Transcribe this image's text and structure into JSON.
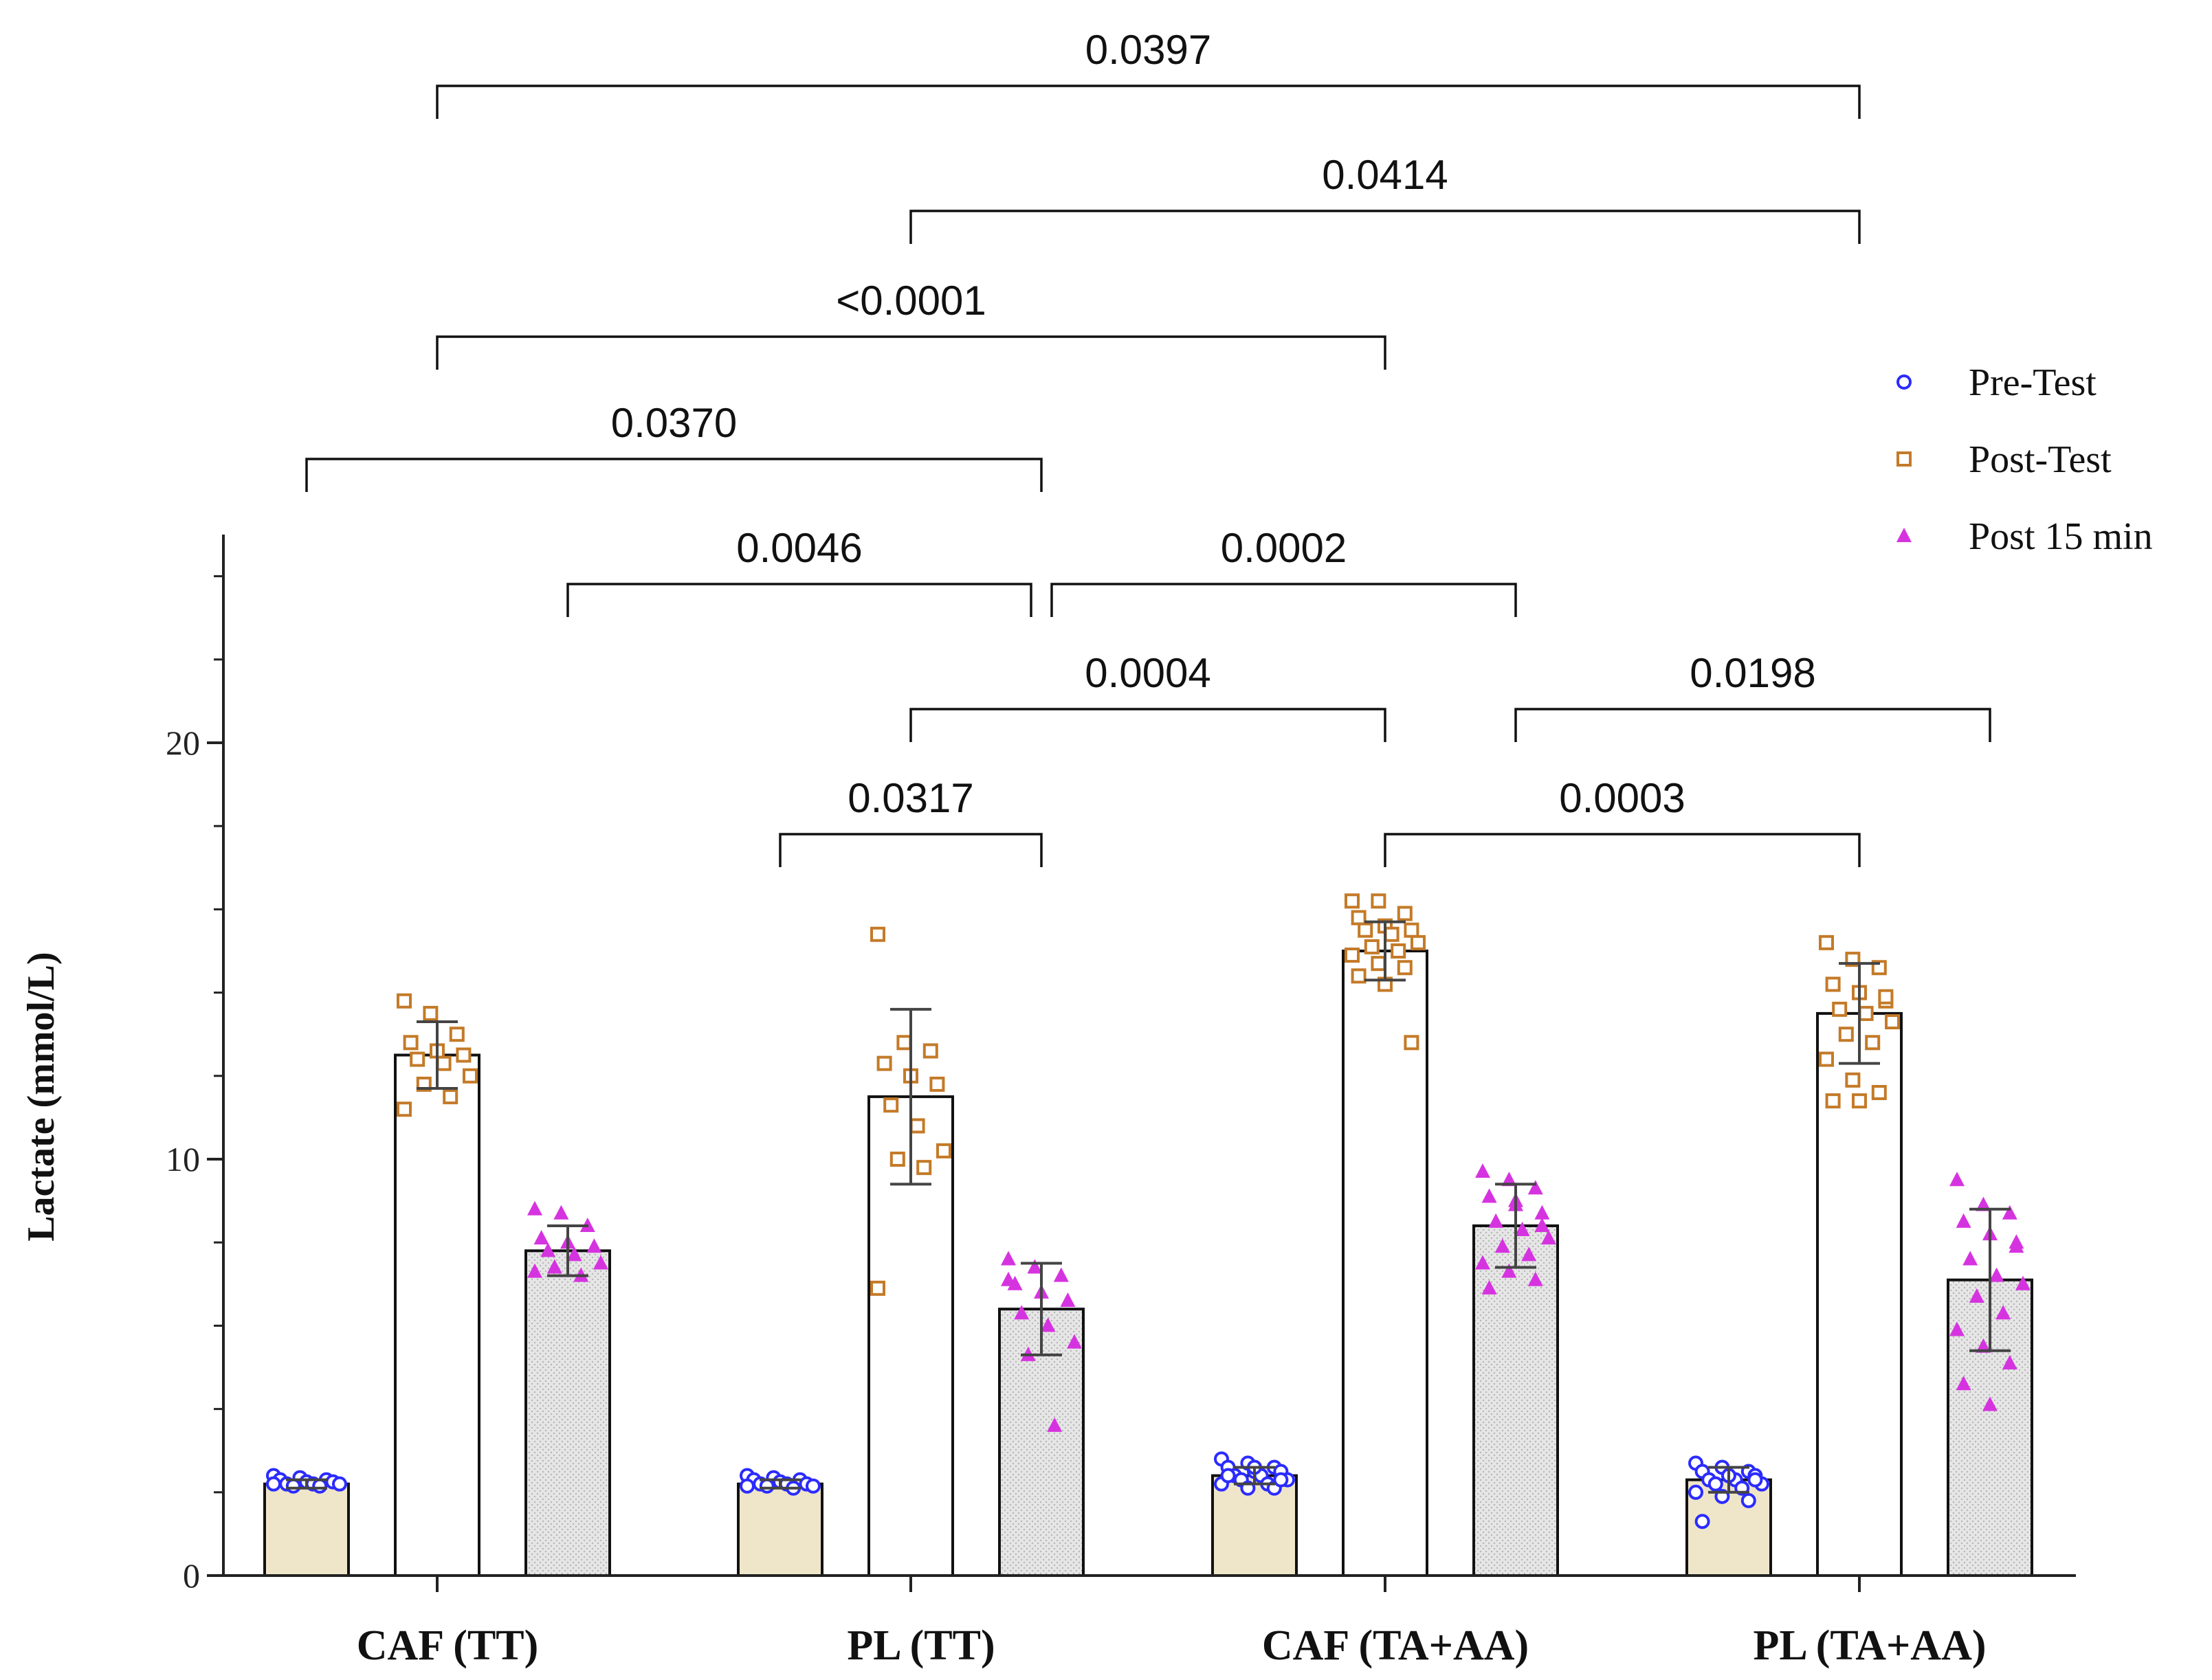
{
  "chart_data": {
    "type": "bar",
    "title": "",
    "xlabel": "",
    "ylabel": "Lactate (mmol/L)",
    "ylim": [
      0,
      25
    ],
    "yticks": [
      0,
      10,
      20
    ],
    "grid": false,
    "legend_position": "top-right",
    "categories": [
      "CAF (TT)",
      "PL (TT)",
      "CAF (TA+AA)",
      "PL (TA+AA)"
    ],
    "series": [
      {
        "name": "Pre-Test",
        "marker": "circle",
        "marker_color": "#2b2bff",
        "bar_fill": "#efe5c9",
        "values": [
          2.2,
          2.2,
          2.4,
          2.3
        ],
        "sd": [
          0.1,
          0.1,
          0.2,
          0.3
        ],
        "points": [
          [
            2.4,
            2.35,
            2.3,
            2.3,
            2.25,
            2.25,
            2.2,
            2.2,
            2.2,
            2.15,
            2.15,
            2.2
          ],
          [
            2.4,
            2.35,
            2.3,
            2.3,
            2.25,
            2.2,
            2.2,
            2.2,
            2.15,
            2.15,
            2.1,
            2.15
          ],
          [
            2.8,
            2.7,
            2.6,
            2.6,
            2.5,
            2.5,
            2.4,
            2.4,
            2.3,
            2.3,
            2.2,
            2.2,
            2.1,
            2.1,
            2.4,
            2.6,
            2.3
          ],
          [
            2.7,
            2.6,
            2.5,
            2.5,
            2.4,
            2.4,
            2.3,
            2.3,
            2.2,
            2.2,
            2.1,
            2.0,
            1.9,
            1.8,
            1.3,
            2.4,
            2.3
          ]
        ]
      },
      {
        "name": "Post-Test",
        "marker": "square",
        "marker_color": "#c47a28",
        "bar_fill": "#ffffff",
        "values": [
          12.5,
          11.5,
          15.0,
          13.5
        ],
        "sd": [
          0.8,
          2.1,
          0.7,
          1.2
        ],
        "points": [
          [
            13.8,
            13.5,
            13.0,
            12.8,
            12.6,
            12.5,
            12.4,
            12.3,
            12.0,
            11.8,
            11.5,
            11.2
          ],
          [
            15.4,
            12.8,
            12.6,
            12.3,
            12.0,
            11.8,
            11.3,
            10.8,
            10.2,
            10.0,
            9.8,
            6.9
          ],
          [
            16.2,
            16.2,
            15.9,
            15.8,
            15.6,
            15.5,
            15.5,
            15.4,
            15.2,
            15.1,
            15.0,
            14.9,
            14.7,
            14.6,
            14.4,
            14.2,
            12.8
          ],
          [
            15.2,
            14.8,
            14.6,
            14.2,
            14.0,
            13.8,
            13.6,
            13.5,
            13.3,
            13.0,
            12.8,
            12.4,
            11.9,
            11.6,
            11.4,
            11.4,
            13.9
          ]
        ]
      },
      {
        "name": "Post 15 min",
        "marker": "triangle",
        "marker_color": "#d633e0",
        "bar_fill": "#e4e4e4",
        "values": [
          7.8,
          6.4,
          8.4,
          7.1
        ],
        "sd": [
          0.6,
          1.1,
          1.0,
          1.7
        ],
        "points": [
          [
            8.8,
            8.7,
            8.4,
            8.1,
            8.0,
            7.9,
            7.8,
            7.7,
            7.5,
            7.4,
            7.2,
            7.3
          ],
          [
            7.6,
            7.4,
            7.2,
            7.0,
            6.8,
            6.6,
            6.3,
            6.0,
            5.6,
            5.3,
            3.6,
            7.1
          ],
          [
            9.7,
            9.5,
            9.3,
            9.1,
            8.9,
            8.7,
            8.5,
            8.3,
            8.1,
            7.9,
            7.7,
            7.5,
            7.3,
            7.1,
            6.9,
            9.0,
            8.4
          ],
          [
            9.5,
            8.9,
            8.7,
            8.5,
            8.2,
            7.9,
            7.6,
            7.2,
            7.0,
            6.7,
            6.3,
            5.9,
            5.5,
            5.1,
            4.6,
            4.1,
            8.0
          ]
        ]
      }
    ],
    "comparisons": [
      {
        "label": "0.0397",
        "from": [
          0,
          1
        ],
        "to": [
          3,
          1
        ]
      },
      {
        "label": "0.0414",
        "from": [
          1,
          1
        ],
        "to": [
          3,
          1
        ]
      },
      {
        "label": "<0.0001",
        "from": [
          0,
          1
        ],
        "to": [
          2,
          1
        ]
      },
      {
        "label": "0.0370",
        "from": [
          0,
          0
        ],
        "to": [
          1,
          2
        ]
      },
      {
        "label": "0.0046",
        "from": [
          0,
          2
        ],
        "to": [
          1,
          2
        ]
      },
      {
        "label": "0.0002",
        "from": [
          1,
          2
        ],
        "to": [
          2,
          2
        ]
      },
      {
        "label": "0.0004",
        "from": [
          1,
          1
        ],
        "to": [
          2,
          1
        ]
      },
      {
        "label": "0.0198",
        "from": [
          2,
          2
        ],
        "to": [
          3,
          2
        ]
      },
      {
        "label": "0.0317",
        "from": [
          1,
          0
        ],
        "to": [
          1,
          2
        ]
      },
      {
        "label": "0.0003",
        "from": [
          2,
          1
        ],
        "to": [
          3,
          1
        ]
      }
    ]
  }
}
